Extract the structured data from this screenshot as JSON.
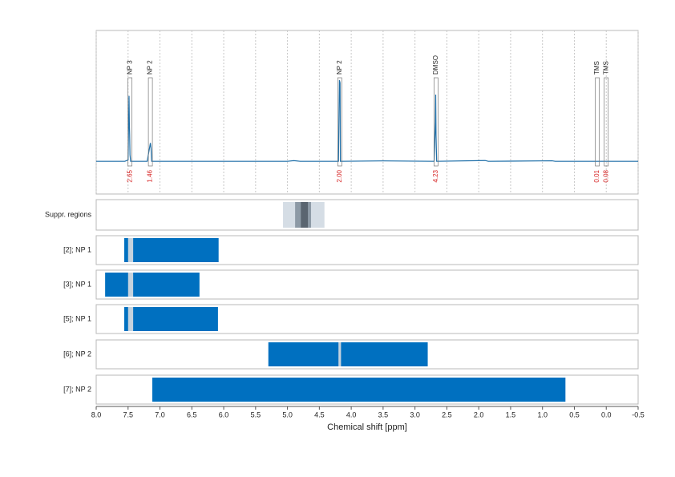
{
  "chart_data": {
    "type": "nmr",
    "x_label": "Chemical shift [ppm]",
    "xlim": [
      8,
      -0.5
    ],
    "xticks": [
      {
        "value": 8,
        "label": "8.0"
      },
      7.5,
      {
        "value": 7,
        "label": "7.0"
      },
      6.5,
      {
        "value": 6,
        "label": "6.0"
      },
      5.5,
      {
        "value": 5,
        "label": "5.0"
      },
      4.5,
      {
        "value": 4,
        "label": "4.0"
      },
      3.5,
      {
        "value": 3,
        "label": "3.0"
      },
      2.5,
      {
        "value": 2,
        "label": "2.0"
      },
      1.5,
      {
        "value": 1,
        "label": "1.0"
      },
      0.5,
      {
        "value": 0,
        "label": "0.0"
      },
      -0.5
    ],
    "grid": true,
    "color": "#0070c0",
    "spectrum": {
      "color": "#1f6fa8",
      "ylim": [
        -0.25,
        1
      ],
      "x": [
        8.0,
        7.55,
        7.5,
        7.485,
        7.48,
        7.475,
        7.47,
        7.46,
        7.2,
        7.15,
        7.14,
        7.13,
        5.0,
        4.9,
        4.8,
        4.2,
        4.185,
        4.175,
        4.17,
        3.5,
        2.7,
        2.68,
        2.675,
        2.67,
        2.66,
        1.9,
        1.85,
        0.85,
        0.8,
        -0.5
      ],
      "values": [
        0,
        0,
        0.01,
        0.5,
        0.3,
        0.2,
        0.05,
        0,
        0,
        0.14,
        0.1,
        0,
        0,
        0.005,
        0,
        0,
        0.62,
        0.6,
        0,
        0.003,
        0,
        0.3,
        0.51,
        0.2,
        0,
        0.006,
        0,
        0.004,
        0,
        0
      ]
    },
    "peaks": [
      {
        "label": "NP 3",
        "x": 7.47,
        "integral": 2.65
      },
      {
        "label": "NP 2",
        "x": 7.15,
        "integral": 1.46
      },
      {
        "label": "NP 2",
        "x": 4.18,
        "integral": {
          "value": 2,
          "label": "2.00"
        }
      },
      {
        "label": "DMSO",
        "x": 2.67,
        "integral": 4.23
      },
      {
        "label": "TMS",
        "x": 0.14,
        "integral": 0.01
      },
      {
        "label": "TMS",
        "x": 0,
        "integral": 0.08
      }
    ],
    "suppression": {
      "label": "Suppr. regions",
      "regions": [
        {
          "range": [
            5.07,
            4.42
          ],
          "color": "#d5dde5"
        },
        {
          "range": [
            4.88,
            4.63
          ],
          "color": "#8d9aa6"
        },
        {
          "range": [
            4.79,
            4.68
          ],
          "color": "#5a6570"
        }
      ]
    },
    "regions": [
      {
        "label": "[2]; NP 1",
        "range": [
          7.56,
          6.08
        ],
        "excluded": [
          7.5,
          7.42
        ]
      },
      {
        "label": "[3]; NP 1",
        "range": [
          7.86,
          6.38
        ],
        "excluded": [
          7.5,
          7.42
        ]
      },
      {
        "label": "[5]; NP 1",
        "range": [
          7.56,
          6.09
        ],
        "excluded": [
          7.5,
          7.42
        ]
      },
      {
        "label": "[6]; NP 2",
        "range": [
          5.3,
          2.8
        ],
        "excluded": [
          4.2,
          4.16
        ]
      },
      {
        "label": "[7]; NP 2",
        "range": [
          7.12,
          0.64
        ]
      }
    ]
  }
}
